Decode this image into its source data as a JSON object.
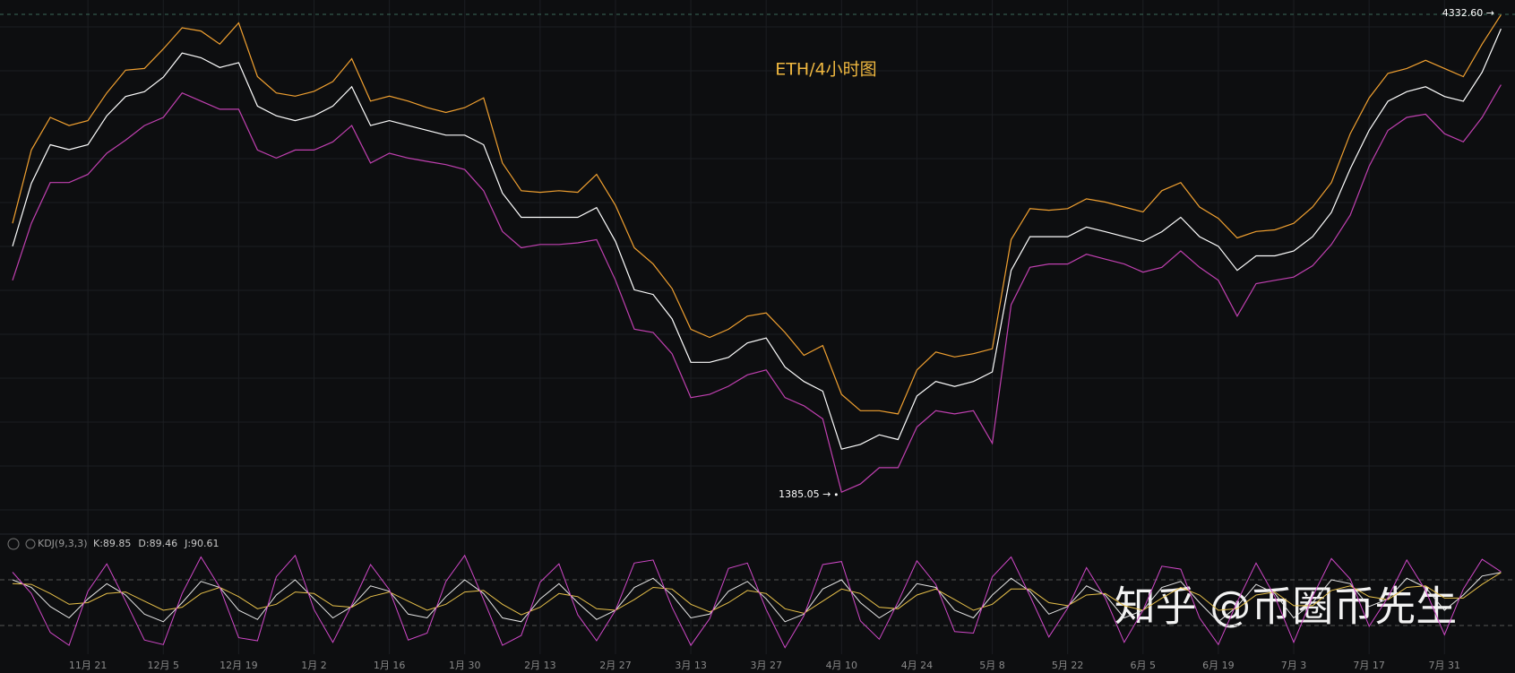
{
  "chart_data": [
    {
      "type": "line",
      "title": "ETH/4小时图",
      "ylim": [
        1300,
        4400
      ],
      "series": [
        {
          "color": "#f0a030",
          "values": [
            3050,
            3500,
            3700,
            3650,
            3680,
            3850,
            3990,
            4000,
            4120,
            4250,
            4230,
            4150,
            4280,
            3950,
            3850,
            3830,
            3860,
            3920,
            4060,
            3800,
            3830,
            3800,
            3760,
            3730,
            3760,
            3820,
            3420,
            3250,
            3240,
            3250,
            3240,
            3350,
            3160,
            2900,
            2800,
            2650,
            2400,
            2350,
            2400,
            2480,
            2500,
            2380,
            2240,
            2300,
            2000,
            1900,
            1900,
            1880,
            2150,
            2260,
            2230,
            2250,
            2280,
            2950,
            3140,
            3130,
            3140,
            3200,
            3180,
            3150,
            3120,
            3250,
            3300,
            3150,
            3080,
            2960,
            3000,
            3010,
            3050,
            3150,
            3300,
            3600,
            3820,
            3970,
            4000,
            4050,
            4000,
            3950,
            4150,
            4330
          ]
        },
        {
          "color": "#ffffff",
          "values": [
            2909,
            3295,
            3532,
            3502,
            3532,
            3710,
            3828,
            3858,
            3947,
            4095,
            4066,
            4006,
            4036,
            3769,
            3710,
            3680,
            3710,
            3769,
            3888,
            3650,
            3680,
            3650,
            3621,
            3591,
            3591,
            3532,
            3235,
            3087,
            3087,
            3087,
            3087,
            3146,
            2939,
            2642,
            2613,
            2464,
            2197,
            2197,
            2227,
            2316,
            2346,
            2168,
            2079,
            2020,
            1664,
            1693,
            1752,
            1723,
            1990,
            2079,
            2049,
            2079,
            2138,
            2761,
            2968,
            2968,
            2968,
            3027,
            2998,
            2968,
            2939,
            2998,
            3087,
            2968,
            2909,
            2761,
            2850,
            2850,
            2880,
            2968,
            3117,
            3384,
            3621,
            3799,
            3858,
            3888,
            3828,
            3799,
            3977,
            4244
          ]
        },
        {
          "color": "#c040b0",
          "values": [
            2700,
            3050,
            3300,
            3300,
            3350,
            3480,
            3560,
            3650,
            3700,
            3850,
            3800,
            3750,
            3750,
            3500,
            3450,
            3500,
            3500,
            3550,
            3650,
            3420,
            3480,
            3450,
            3430,
            3410,
            3380,
            3250,
            3000,
            2900,
            2920,
            2920,
            2930,
            2950,
            2700,
            2400,
            2380,
            2250,
            1980,
            2000,
            2050,
            2120,
            2150,
            1980,
            1930,
            1850,
            1400,
            1450,
            1550,
            1550,
            1800,
            1900,
            1880,
            1900,
            1700,
            2550,
            2780,
            2800,
            2800,
            2860,
            2830,
            2800,
            2750,
            2780,
            2880,
            2780,
            2700,
            2480,
            2680,
            2700,
            2720,
            2790,
            2920,
            3100,
            3400,
            3620,
            3700,
            3720,
            3600,
            3550,
            3700,
            3900
          ]
        }
      ],
      "annotations": [
        {
          "value": 4332.6,
          "label": "4332.60 →"
        },
        {
          "value": 1385.05,
          "label": "1385.05 →"
        }
      ],
      "watermark": "知乎 @币圈币先生"
    },
    {
      "type": "line",
      "title": "KDJ(9,3,3)",
      "ylim": [
        -15,
        115
      ],
      "levels": [
        20,
        80
      ],
      "categories": [
        null,
        null,
        null,
        null,
        "11月 21",
        null,
        null,
        null,
        "12月 5",
        null,
        null,
        null,
        "12月 19",
        null,
        null,
        null,
        "1月 2",
        null,
        null,
        null,
        "1月 16",
        null,
        null,
        null,
        "1月 30",
        null,
        null,
        null,
        "2月 13",
        null,
        null,
        null,
        "2月 27",
        null,
        null,
        null,
        "3月 13",
        null,
        null,
        null,
        "3月 27",
        null,
        null,
        null,
        "4月 10",
        null,
        null,
        null,
        "4月 24",
        null,
        null,
        null,
        "5月 8",
        null,
        null,
        null,
        "5月 22",
        null,
        null,
        null,
        "6月 5",
        null,
        null,
        null,
        "6月 19",
        null,
        null,
        null,
        "7月 3",
        null,
        null,
        null,
        "7月 17",
        null,
        null,
        null,
        "7月 31",
        null,
        null,
        null
      ],
      "series": [
        {
          "name": "K:89.85",
          "color": "#e6e6e6",
          "values": [
            80,
            70,
            45,
            30,
            55,
            75,
            60,
            35,
            25,
            50,
            78,
            70,
            40,
            28,
            60,
            80,
            55,
            30,
            45,
            72,
            65,
            35,
            30,
            58,
            80,
            62,
            30,
            25,
            55,
            75,
            50,
            28,
            40,
            70,
            82,
            60,
            30,
            35,
            65,
            78,
            55,
            25,
            35,
            68,
            80,
            50,
            30,
            45,
            75,
            70,
            40,
            30,
            60,
            82,
            65,
            35,
            45,
            72,
            60,
            30,
            40,
            70,
            78,
            50,
            25,
            45,
            74,
            62,
            30,
            50,
            80,
            75,
            45,
            55,
            82,
            70,
            40,
            60,
            85,
            89.85
          ]
        },
        {
          "name": "D:89.46",
          "color": "#e8c14a",
          "values": [
            75,
            74,
            62,
            48,
            50,
            62,
            64,
            52,
            40,
            44,
            62,
            70,
            58,
            42,
            48,
            64,
            62,
            46,
            44,
            58,
            64,
            52,
            40,
            48,
            64,
            66,
            48,
            34,
            44,
            62,
            58,
            42,
            40,
            54,
            70,
            68,
            48,
            38,
            50,
            66,
            62,
            42,
            36,
            52,
            68,
            62,
            44,
            42,
            60,
            68,
            54,
            40,
            48,
            68,
            68,
            50,
            46,
            60,
            62,
            46,
            40,
            56,
            70,
            60,
            40,
            42,
            60,
            64,
            46,
            46,
            66,
            72,
            58,
            54,
            70,
            72,
            56,
            56,
            74,
            89.46
          ]
        },
        {
          "name": "J:90.61",
          "color": "#d048c8",
          "values": [
            90,
            62,
            11,
            -6,
            65,
            101,
            52,
            1,
            -5,
            62,
            110,
            70,
            4,
            0,
            84,
            112,
            41,
            -2,
            47,
            100,
            67,
            1,
            10,
            78,
            112,
            54,
            -6,
            7,
            77,
            101,
            34,
            0,
            40,
            102,
            106,
            44,
            -6,
            29,
            95,
            102,
            41,
            -9,
            33,
            100,
            104,
            26,
            2,
            51,
            105,
            74,
            12,
            10,
            84,
            110,
            59,
            5,
            43,
            96,
            56,
            -2,
            40,
            98,
            94,
            30,
            -5,
            51,
            102,
            58,
            -2,
            58,
            108,
            81,
            19,
            57,
            106,
            66,
            8,
            68,
            107,
            90.61
          ]
        }
      ]
    }
  ]
}
